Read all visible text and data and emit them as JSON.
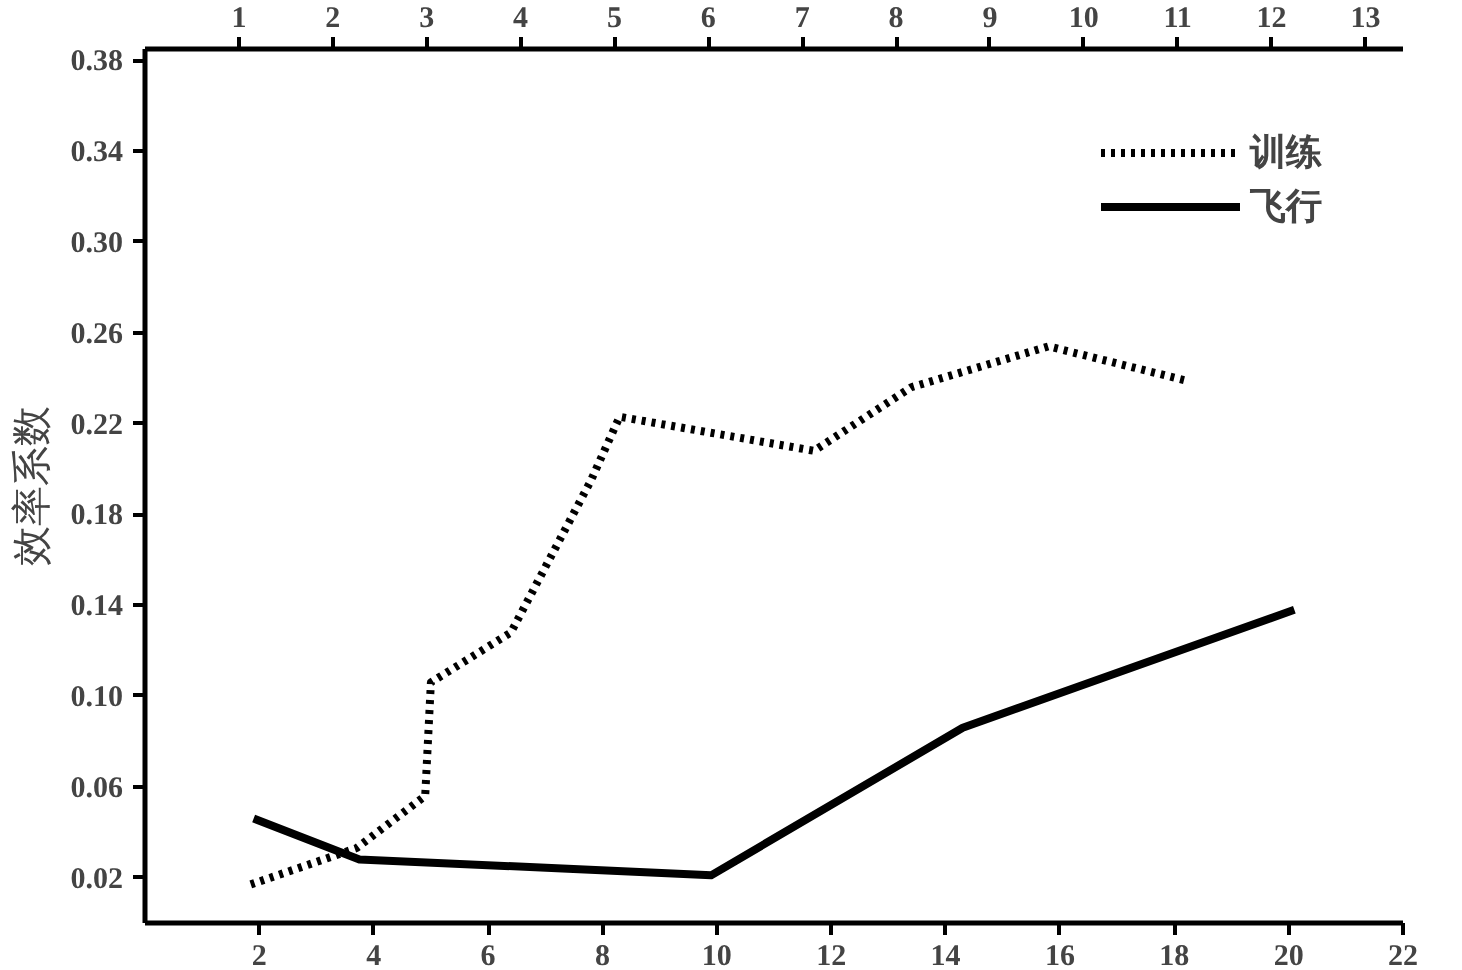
{
  "chart_data": {
    "type": "line",
    "ylabel": "效率系数",
    "xlim": [
      0,
      22
    ],
    "xticks": [
      2,
      4,
      6,
      8,
      10,
      12,
      14,
      16,
      18,
      20,
      22
    ],
    "x2lim": [
      0,
      13.4
    ],
    "x2ticks": [
      1,
      2,
      3,
      4,
      5,
      6,
      7,
      8,
      9,
      10,
      11,
      12,
      13
    ],
    "ylim": [
      0,
      0.385
    ],
    "yticks": [
      0.02,
      0.06,
      {
        "value": 0.1,
        "label": "0.10"
      },
      0.14,
      0.18,
      0.22,
      0.26,
      {
        "value": 0.3,
        "label": "0.30"
      },
      0.34,
      0.38
    ],
    "legend": "top right",
    "grid": false,
    "series": [
      {
        "name": "训练",
        "color": "#000000",
        "line_style": "dotted",
        "x": [
          1.85,
          3.7,
          4.9,
          5.0,
          6.4,
          7.8,
          8.3,
          11.7,
          13.4,
          15.8,
          18.2
        ],
        "values": [
          0.017,
          0.033,
          0.056,
          0.106,
          0.128,
          0.195,
          0.223,
          0.208,
          0.236,
          0.254,
          0.239
        ]
      },
      {
        "name": "飞行",
        "color": "#000000",
        "line_style": "solid",
        "x": [
          1.9,
          3.75,
          7.3,
          9.9,
          14.3,
          20.1
        ],
        "values": [
          0.046,
          0.028,
          0.024,
          0.021,
          0.086,
          0.138
        ]
      }
    ]
  }
}
